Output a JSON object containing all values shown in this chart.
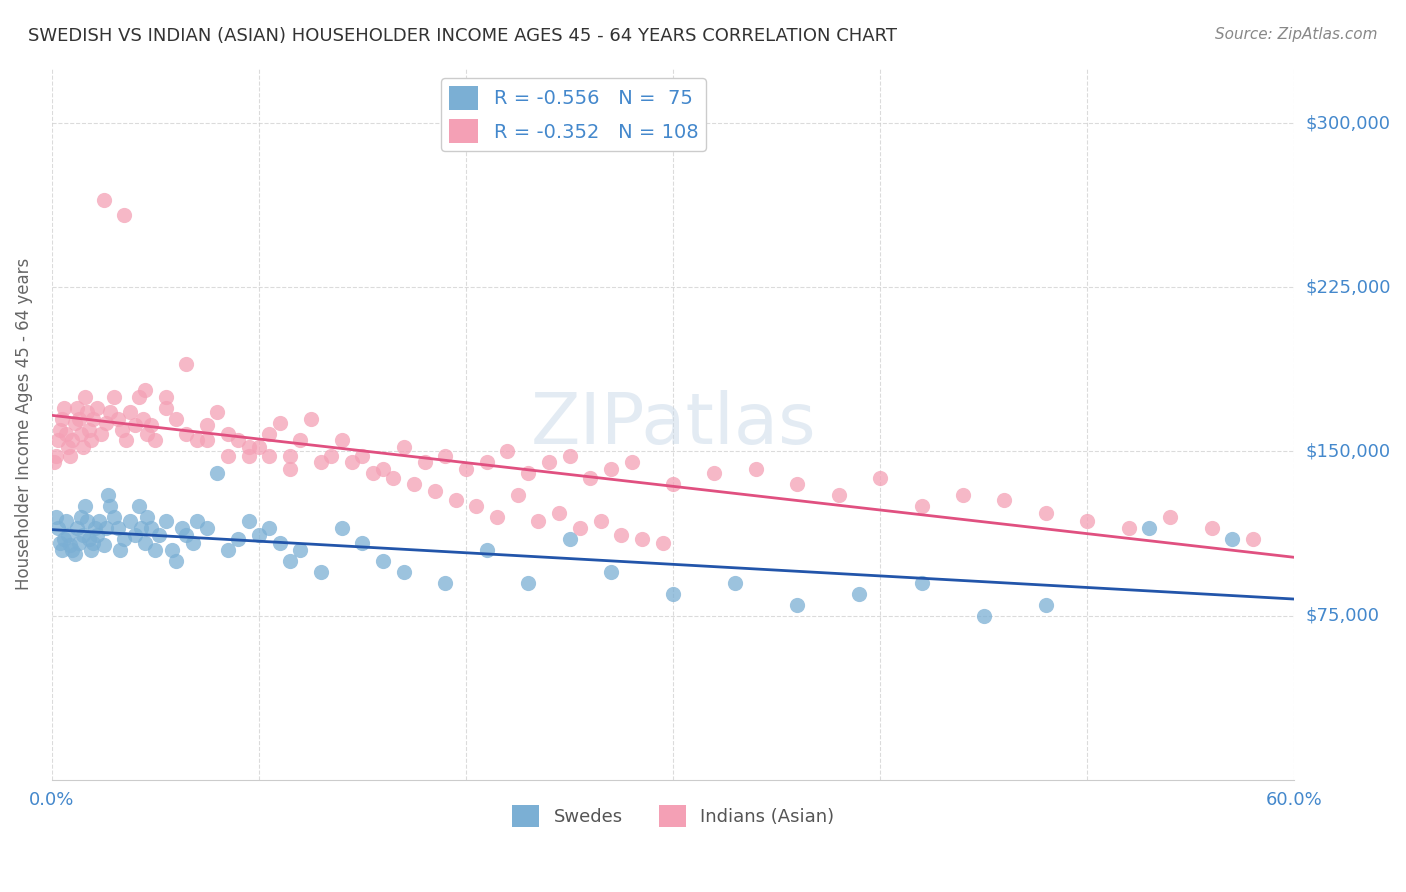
{
  "title": "SWEDISH VS INDIAN (ASIAN) HOUSEHOLDER INCOME AGES 45 - 64 YEARS CORRELATION CHART",
  "source": "Source: ZipAtlas.com",
  "xlabel_bottom": "",
  "ylabel": "Householder Income Ages 45 - 64 years",
  "x_min": 0.0,
  "x_max": 0.6,
  "y_min": 0,
  "y_max": 325000,
  "yticks": [
    75000,
    150000,
    225000,
    300000
  ],
  "ytick_labels": [
    "$75,000",
    "$150,000",
    "$225,000",
    "$300,000"
  ],
  "xticks": [
    0.0,
    0.1,
    0.2,
    0.3,
    0.4,
    0.5,
    0.6
  ],
  "xtick_labels": [
    "0.0%",
    "",
    "",
    "",
    "",
    "",
    "60.0%"
  ],
  "legend_R1": "R = -0.556",
  "legend_N1": "N =  75",
  "legend_R2": "R = -0.352",
  "legend_N2": "N = 108",
  "label1": "Swedes",
  "label2": "Indians (Asian)",
  "color1": "#7bafd4",
  "color2": "#f4a0b5",
  "line_color1": "#2255aa",
  "line_color2": "#e05080",
  "R1": -0.556,
  "N1": 75,
  "R2": -0.352,
  "N2": 108,
  "watermark": "ZIPatlas",
  "background_color": "#ffffff",
  "title_color": "#333333",
  "axis_color": "#4488cc",
  "grid_color": "#cccccc",
  "swedes_x": [
    0.002,
    0.003,
    0.004,
    0.005,
    0.006,
    0.007,
    0.008,
    0.009,
    0.01,
    0.011,
    0.012,
    0.013,
    0.014,
    0.015,
    0.016,
    0.017,
    0.018,
    0.019,
    0.02,
    0.021,
    0.022,
    0.023,
    0.025,
    0.026,
    0.027,
    0.028,
    0.03,
    0.032,
    0.033,
    0.035,
    0.038,
    0.04,
    0.042,
    0.043,
    0.045,
    0.046,
    0.048,
    0.05,
    0.052,
    0.055,
    0.058,
    0.06,
    0.063,
    0.065,
    0.068,
    0.07,
    0.075,
    0.08,
    0.085,
    0.09,
    0.095,
    0.1,
    0.105,
    0.11,
    0.115,
    0.12,
    0.13,
    0.14,
    0.15,
    0.16,
    0.17,
    0.19,
    0.21,
    0.23,
    0.25,
    0.27,
    0.3,
    0.33,
    0.36,
    0.39,
    0.42,
    0.45,
    0.48,
    0.53,
    0.57
  ],
  "swedes_y": [
    120000,
    115000,
    108000,
    105000,
    110000,
    118000,
    112000,
    107000,
    105000,
    103000,
    115000,
    108000,
    120000,
    112000,
    125000,
    118000,
    110000,
    105000,
    108000,
    115000,
    112000,
    118000,
    107000,
    115000,
    130000,
    125000,
    120000,
    115000,
    105000,
    110000,
    118000,
    112000,
    125000,
    115000,
    108000,
    120000,
    115000,
    105000,
    112000,
    118000,
    105000,
    100000,
    115000,
    112000,
    108000,
    118000,
    115000,
    140000,
    105000,
    110000,
    118000,
    112000,
    115000,
    108000,
    100000,
    105000,
    95000,
    115000,
    108000,
    100000,
    95000,
    90000,
    105000,
    90000,
    110000,
    95000,
    85000,
    90000,
    80000,
    85000,
    90000,
    75000,
    80000,
    115000,
    110000
  ],
  "indians_x": [
    0.001,
    0.002,
    0.003,
    0.004,
    0.005,
    0.006,
    0.007,
    0.008,
    0.009,
    0.01,
    0.011,
    0.012,
    0.013,
    0.014,
    0.015,
    0.016,
    0.017,
    0.018,
    0.019,
    0.02,
    0.022,
    0.024,
    0.026,
    0.028,
    0.03,
    0.032,
    0.034,
    0.036,
    0.038,
    0.04,
    0.042,
    0.044,
    0.046,
    0.048,
    0.05,
    0.055,
    0.06,
    0.065,
    0.07,
    0.075,
    0.08,
    0.085,
    0.09,
    0.095,
    0.1,
    0.105,
    0.11,
    0.115,
    0.12,
    0.13,
    0.14,
    0.15,
    0.16,
    0.17,
    0.18,
    0.19,
    0.2,
    0.21,
    0.22,
    0.23,
    0.24,
    0.25,
    0.26,
    0.27,
    0.28,
    0.3,
    0.32,
    0.34,
    0.36,
    0.38,
    0.4,
    0.42,
    0.44,
    0.46,
    0.48,
    0.5,
    0.52,
    0.54,
    0.56,
    0.58,
    0.025,
    0.035,
    0.045,
    0.055,
    0.065,
    0.075,
    0.085,
    0.095,
    0.105,
    0.115,
    0.125,
    0.135,
    0.145,
    0.155,
    0.165,
    0.175,
    0.185,
    0.195,
    0.205,
    0.215,
    0.225,
    0.235,
    0.245,
    0.255,
    0.265,
    0.275,
    0.285,
    0.295
  ],
  "indians_y": [
    145000,
    148000,
    155000,
    160000,
    165000,
    170000,
    158000,
    152000,
    148000,
    155000,
    163000,
    170000,
    165000,
    158000,
    152000,
    175000,
    168000,
    160000,
    155000,
    165000,
    170000,
    158000,
    163000,
    168000,
    175000,
    165000,
    160000,
    155000,
    168000,
    162000,
    175000,
    165000,
    158000,
    162000,
    155000,
    170000,
    165000,
    158000,
    155000,
    162000,
    168000,
    158000,
    155000,
    148000,
    152000,
    158000,
    163000,
    148000,
    155000,
    145000,
    155000,
    148000,
    142000,
    152000,
    145000,
    148000,
    142000,
    145000,
    150000,
    140000,
    145000,
    148000,
    138000,
    142000,
    145000,
    135000,
    140000,
    142000,
    135000,
    130000,
    138000,
    125000,
    130000,
    128000,
    122000,
    118000,
    115000,
    120000,
    115000,
    110000,
    265000,
    258000,
    178000,
    175000,
    190000,
    155000,
    148000,
    152000,
    148000,
    142000,
    165000,
    148000,
    145000,
    140000,
    138000,
    135000,
    132000,
    128000,
    125000,
    120000,
    130000,
    118000,
    122000,
    115000,
    118000,
    112000,
    110000,
    108000
  ]
}
